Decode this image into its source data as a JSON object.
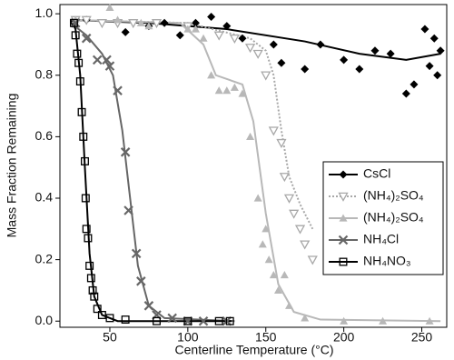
{
  "chart_data": {
    "type": "scatter",
    "x_label": "Centerline Temperature (°C)",
    "y_label": "Mass Fraction Remaining",
    "xlim": [
      18,
      266
    ],
    "ylim": [
      -0.02,
      1.03
    ],
    "xticks": [
      50,
      100,
      150,
      200,
      250
    ],
    "yticks": [
      {
        "value": 0,
        "label": "0.0"
      },
      0.2,
      0.4,
      0.6,
      0.8,
      {
        "value": 1,
        "label": "1.0"
      }
    ],
    "legend": "lower right",
    "series": [
      {
        "name": "CsCl",
        "color": "#000000",
        "marker": "diamond",
        "line_style": "solid",
        "x": [
          27,
          35,
          60,
          75,
          85,
          95,
          105,
          115,
          125,
          135,
          155,
          160,
          175,
          185,
          200,
          210,
          220,
          230,
          240,
          245,
          252,
          255,
          258,
          260,
          262
        ],
        "values": [
          0.97,
          0.98,
          0.94,
          0.96,
          0.97,
          0.93,
          0.97,
          0.99,
          0.96,
          0.92,
          0.9,
          0.84,
          0.82,
          0.9,
          0.85,
          0.82,
          0.88,
          0.87,
          0.74,
          0.77,
          0.95,
          0.83,
          0.92,
          0.8,
          0.88
        ],
        "line_x": [
          25,
          75,
          125,
          175,
          210,
          240,
          262
        ],
        "line_values": [
          0.98,
          0.97,
          0.95,
          0.91,
          0.87,
          0.85,
          0.87
        ]
      },
      {
        "name": "(NH₄)₂SO₄",
        "color": "#a8a8a8",
        "marker": "triangle-down-open",
        "line_style": "dotted",
        "x": [
          28,
          35,
          45,
          55,
          65,
          80,
          100,
          120,
          130,
          140,
          145,
          150,
          155,
          160,
          162,
          165,
          168,
          172,
          175,
          180
        ],
        "values": [
          0.98,
          0.98,
          0.97,
          0.97,
          0.97,
          0.97,
          0.96,
          0.93,
          0.92,
          0.89,
          0.87,
          0.8,
          0.62,
          0.58,
          0.47,
          0.4,
          0.35,
          0.3,
          0.25,
          0.2
        ],
        "line_x": [
          25,
          100,
          140,
          150,
          155,
          160,
          165,
          172,
          180
        ],
        "line_values": [
          0.98,
          0.97,
          0.92,
          0.88,
          0.8,
          0.62,
          0.47,
          0.38,
          0.3
        ]
      },
      {
        "name": "(NH₄)₂SO₄",
        "color": "#b8b8b8",
        "marker": "triangle-up",
        "line_style": "solid",
        "x": [
          28,
          50,
          55,
          70,
          75,
          100,
          105,
          110,
          115,
          120,
          125,
          130,
          135,
          140,
          145,
          148,
          150,
          152,
          155,
          158,
          162,
          165,
          175,
          200,
          225,
          255
        ],
        "values": [
          0.98,
          1.02,
          0.98,
          0.97,
          0.96,
          0.95,
          0.95,
          0.92,
          0.8,
          0.75,
          0.75,
          0.76,
          0.74,
          0.6,
          0.4,
          0.25,
          0.3,
          0.2,
          0.15,
          0.1,
          0.15,
          0.05,
          0.01,
          0,
          0,
          0
        ],
        "line_x": [
          25,
          95,
          110,
          118,
          135,
          142,
          150,
          158,
          168,
          185,
          262
        ],
        "line_values": [
          0.98,
          0.97,
          0.9,
          0.8,
          0.77,
          0.65,
          0.35,
          0.12,
          0.03,
          0.005,
          0
        ]
      },
      {
        "name": "NH₄Cl",
        "color": "#666666",
        "marker": "x",
        "line_style": "solid",
        "x": [
          28,
          35,
          42,
          48,
          50,
          55,
          60,
          62,
          67,
          70,
          75,
          80,
          90,
          100,
          110,
          125
        ],
        "values": [
          0.97,
          0.92,
          0.85,
          0.85,
          0.83,
          0.75,
          0.55,
          0.36,
          0.22,
          0.13,
          0.05,
          0.02,
          0.01,
          0,
          0,
          0
        ],
        "line_x": [
          25,
          35,
          45,
          52,
          58,
          63,
          68,
          75,
          85,
          130
        ],
        "line_values": [
          0.97,
          0.93,
          0.87,
          0.8,
          0.62,
          0.4,
          0.18,
          0.05,
          0.01,
          0
        ]
      },
      {
        "name": "NH₄NO₃",
        "color": "#000000",
        "marker": "square-open",
        "line_style": "solid",
        "x": [
          27,
          28,
          29,
          30,
          31,
          32,
          33,
          34,
          34.5,
          35,
          36,
          37,
          38,
          39,
          40,
          42,
          45,
          50,
          60,
          80,
          100,
          120,
          127
        ],
        "values": [
          0.97,
          0.93,
          0.87,
          0.84,
          0.78,
          0.68,
          0.6,
          0.52,
          0.4,
          0.3,
          0.27,
          0.18,
          0.14,
          0.1,
          0.08,
          0.04,
          0.02,
          0.01,
          0.005,
          0,
          0,
          0,
          0
        ],
        "line_x": [
          25,
          28,
          31,
          34,
          37,
          40,
          45,
          55,
          128
        ],
        "line_values": [
          0.98,
          0.95,
          0.8,
          0.5,
          0.22,
          0.08,
          0.02,
          0,
          0
        ]
      }
    ]
  }
}
